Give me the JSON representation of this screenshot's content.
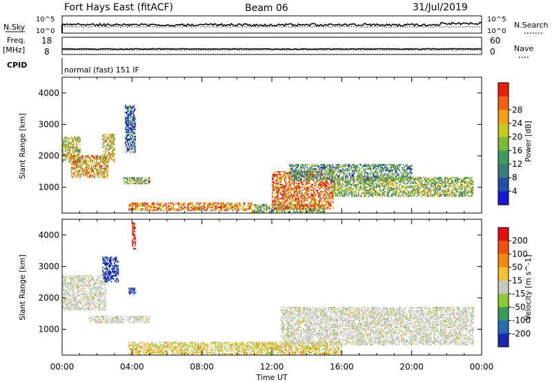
{
  "header": {
    "station": "Fort Hays East (fitACF)",
    "beam": "Beam 06",
    "date": "31/Jul/2019"
  },
  "top_panels": {
    "nsky_label": "N.Sky",
    "nsky_ticks": [
      "10^5",
      "10^0"
    ],
    "nsearch_label": "N.Search",
    "nsearch_ticks": [
      "10^5",
      "10^0"
    ],
    "freq_label_line1": "Freq.",
    "freq_label_line2": "[MHz]",
    "freq_ticks": [
      "18",
      "8"
    ],
    "nave_label": "Nave",
    "nave_ticks": [
      "60",
      "0"
    ],
    "cpid_label": "CPID",
    "cpid_text": "normal (fast) 151 IF"
  },
  "chart_data": [
    {
      "type": "heatmap",
      "name": "power",
      "ylabel": "Slant Range [km]",
      "xlabel": "Time UT",
      "xlim_hours": [
        0,
        24
      ],
      "ylim_km": [
        180,
        4500
      ],
      "y_ticks": [
        "1000",
        "2000",
        "3000",
        "4000"
      ],
      "x_ticks": [
        "00:00",
        "04:00",
        "08:00",
        "12:00",
        "16:00",
        "20:00",
        "00:00"
      ],
      "colorbar": {
        "label": "Power [dB]",
        "ticks": [
          "4",
          "8",
          "12",
          "16",
          "20",
          "24",
          "28"
        ],
        "colors": [
          "#1a18d8",
          "#2450a8",
          "#3d7a7a",
          "#3d9a5a",
          "#7ab83a",
          "#c8c820",
          "#f0a010",
          "#f06010",
          "#e82010"
        ]
      },
      "regions": [
        {
          "t": [
            0.0,
            1.0
          ],
          "r": [
            1800,
            2600
          ],
          "level": 0.55
        },
        {
          "t": [
            0.5,
            2.6
          ],
          "r": [
            1300,
            2000
          ],
          "level": 0.7
        },
        {
          "t": [
            2.3,
            3.0
          ],
          "r": [
            1800,
            2700
          ],
          "level": 0.6
        },
        {
          "t": [
            3.6,
            4.2
          ],
          "r": [
            2100,
            3600
          ],
          "level": 0.2
        },
        {
          "t": [
            3.5,
            5.0
          ],
          "r": [
            1100,
            1300
          ],
          "level": 0.45
        },
        {
          "t": [
            3.8,
            10.8
          ],
          "r": [
            250,
            500
          ],
          "level": 0.8
        },
        {
          "t": [
            10.8,
            15.0
          ],
          "r": [
            200,
            450
          ],
          "level": 0.45
        },
        {
          "t": [
            12.0,
            15.5
          ],
          "r": [
            300,
            1500
          ],
          "level": 0.85
        },
        {
          "t": [
            13.0,
            20.0
          ],
          "r": [
            1200,
            1700
          ],
          "level": 0.35
        },
        {
          "t": [
            15.5,
            23.5
          ],
          "r": [
            700,
            1300
          ],
          "level": 0.5
        }
      ]
    },
    {
      "type": "heatmap",
      "name": "velocity",
      "ylabel": "Slant Range [km]",
      "xlabel": "Time UT",
      "xlim_hours": [
        0,
        24
      ],
      "ylim_km": [
        180,
        4500
      ],
      "y_ticks": [
        "1000",
        "2000",
        "3000",
        "4000"
      ],
      "x_ticks": [
        "00:00",
        "04:00",
        "08:00",
        "12:00",
        "16:00",
        "20:00",
        "00:00"
      ],
      "colorbar": {
        "label": "Velocity [m s^-1]",
        "ticks": [
          "200",
          "100",
          "50",
          "15",
          "-15",
          "-50",
          "-100",
          "-200"
        ],
        "colors": [
          "#1a28b8",
          "#2a6ab0",
          "#3a9a5a",
          "#8acb30",
          "#c8c8c0",
          "#f0c030",
          "#f08a10",
          "#f05010",
          "#e01010"
        ]
      },
      "regions": [
        {
          "t": [
            0.0,
            2.5
          ],
          "r": [
            1600,
            2700
          ],
          "level": "ground"
        },
        {
          "t": [
            2.3,
            3.2
          ],
          "r": [
            2500,
            3300
          ],
          "level": "toward"
        },
        {
          "t": [
            3.8,
            4.2
          ],
          "r": [
            2100,
            2300
          ],
          "level": "toward"
        },
        {
          "t": [
            4.0,
            4.2
          ],
          "r": [
            3500,
            4400
          ],
          "level": "away"
        },
        {
          "t": [
            1.5,
            5.0
          ],
          "r": [
            1200,
            1400
          ],
          "level": "ground"
        },
        {
          "t": [
            3.8,
            16.0
          ],
          "r": [
            200,
            600
          ],
          "level": "slightly-away"
        },
        {
          "t": [
            12.5,
            23.5
          ],
          "r": [
            500,
            1700
          ],
          "level": "ground"
        }
      ]
    }
  ]
}
